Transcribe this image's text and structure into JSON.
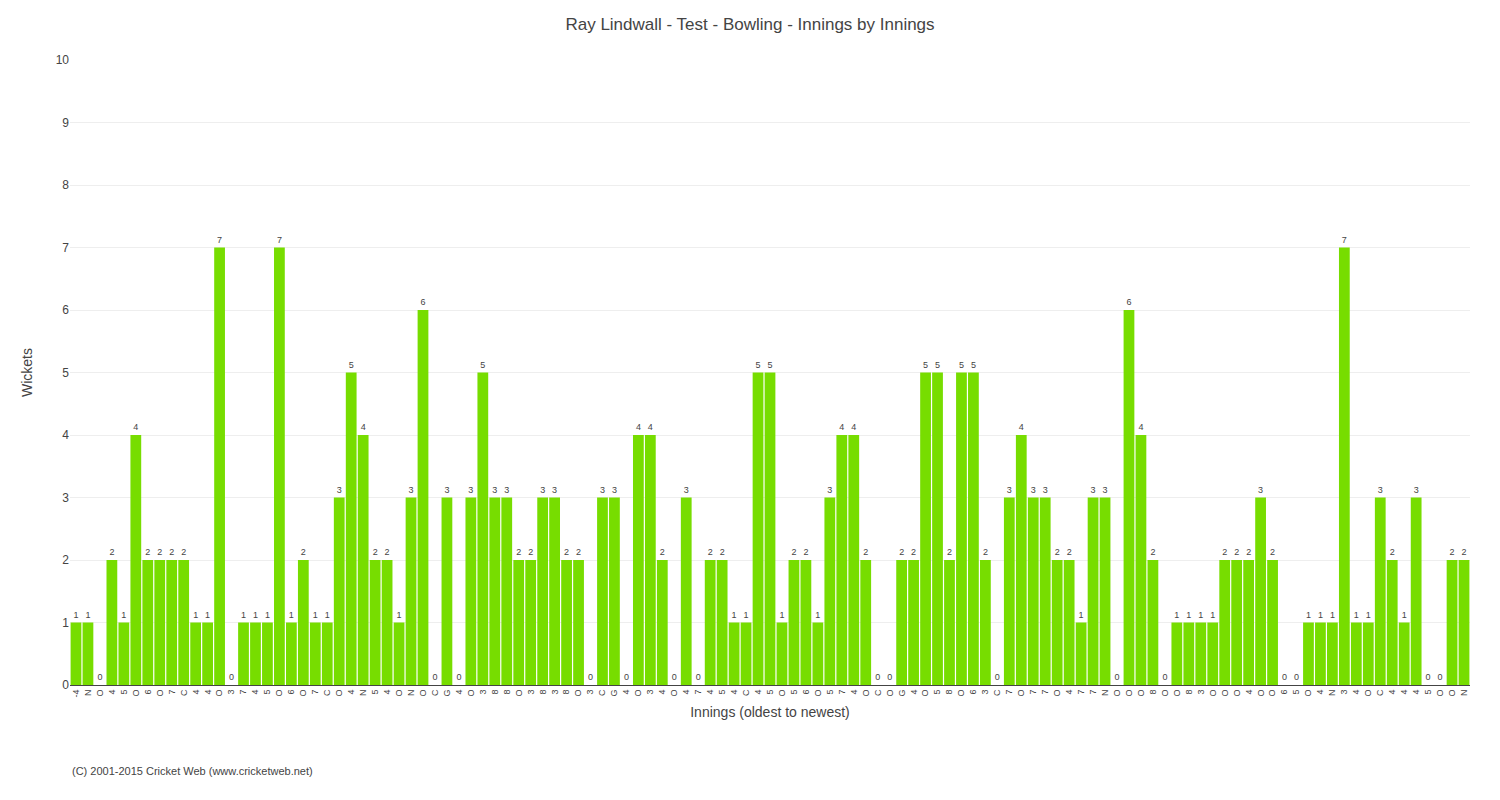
{
  "chart_data": {
    "type": "bar",
    "title": "Ray Lindwall - Test - Bowling - Innings by Innings",
    "ylabel": "Wickets",
    "xlabel": "Innings (oldest to newest)",
    "color": "#77dd00",
    "ylim": [
      0,
      10
    ],
    "yticks": [
      0,
      1,
      2,
      3,
      4,
      5,
      6,
      7,
      8,
      9,
      10
    ],
    "grid": true,
    "data_labels": true,
    "annotations": [
      "(C) 2001-2015 Cricket Web (www.cricketweb.net)"
    ],
    "categories": [
      "-4",
      "N",
      "O",
      "4",
      "5",
      "O",
      "6",
      "O",
      "7",
      "C",
      "4",
      "4",
      "O",
      "3",
      "7",
      "4",
      "5",
      "O",
      "6",
      "O",
      "7",
      "C",
      "O",
      "4",
      "N",
      "5",
      "4",
      "O",
      "N",
      "O",
      "C",
      "G",
      "4",
      "O",
      "3",
      "8",
      "8",
      "O",
      "3",
      "8",
      "3",
      "8",
      "O",
      "3",
      "C",
      "G",
      "4",
      "O",
      "3",
      "4",
      "O",
      "4",
      "7",
      "4",
      "5",
      "4",
      "C",
      "4",
      "5",
      "O",
      "5",
      "6",
      "O",
      "5",
      "7",
      "4",
      "O",
      "C",
      "O",
      "G",
      "4",
      "O",
      "5",
      "8",
      "O",
      "6",
      "3",
      "C",
      "7",
      "O",
      "7",
      "7",
      "O",
      "4",
      "7",
      "7",
      "N",
      "O",
      "O",
      "O",
      "8",
      "O",
      "O",
      "8",
      "3",
      "O",
      "O",
      "O",
      "4",
      "O",
      "O",
      "6",
      "5",
      "O",
      "4",
      "N",
      "3",
      "4",
      "O",
      "C",
      "4",
      "4",
      "4",
      "5",
      "O",
      "O",
      "N"
    ],
    "values": [
      1,
      1,
      0,
      2,
      1,
      4,
      2,
      2,
      2,
      2,
      1,
      1,
      7,
      0,
      1,
      1,
      1,
      7,
      1,
      2,
      1,
      1,
      3,
      5,
      4,
      2,
      2,
      1,
      3,
      6,
      0,
      3,
      0,
      3,
      5,
      3,
      3,
      2,
      2,
      3,
      3,
      2,
      2,
      0,
      3,
      3,
      0,
      4,
      4,
      2,
      0,
      3,
      0,
      2,
      2,
      1,
      1,
      5,
      5,
      1,
      2,
      2,
      1,
      3,
      4,
      4,
      2,
      0,
      0,
      2,
      2,
      5,
      5,
      2,
      5,
      5,
      2,
      0,
      3,
      4,
      3,
      3,
      2,
      2,
      1,
      3,
      3,
      0,
      6,
      4,
      2,
      0,
      1,
      1,
      1,
      1,
      2,
      2,
      2,
      3,
      2,
      0,
      0,
      1,
      1,
      1,
      7,
      1,
      1,
      3,
      2,
      1,
      3,
      0,
      0,
      2,
      2
    ]
  }
}
